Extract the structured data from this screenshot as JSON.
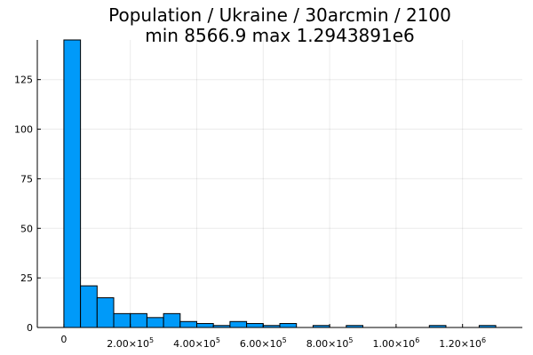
{
  "chart_data": {
    "type": "bar",
    "title": "Population / Ukraine / 30arcmin / 2100",
    "subtitle": "min 8566.9  max 1.2943891e6",
    "bar_color": "#009af9",
    "bin_width": 50000,
    "bins_start": 0,
    "counts": [
      145,
      21,
      15,
      7,
      7,
      5,
      7,
      3,
      2,
      1,
      3,
      2,
      1,
      2,
      0,
      1,
      0,
      1,
      0,
      0,
      0,
      0,
      1,
      0,
      0,
      1
    ],
    "xlim": [
      -80000,
      1380000
    ],
    "ylim": [
      0,
      145
    ],
    "x_ticks": [
      {
        "value": 0,
        "mantissa": "0",
        "exp": ""
      },
      {
        "value": 200000,
        "mantissa": "2.00×10",
        "exp": "5"
      },
      {
        "value": 400000,
        "mantissa": "4.00×10",
        "exp": "5"
      },
      {
        "value": 600000,
        "mantissa": "6.00×10",
        "exp": "5"
      },
      {
        "value": 800000,
        "mantissa": "8.00×10",
        "exp": "5"
      },
      {
        "value": 1000000,
        "mantissa": "1.00×10",
        "exp": "6"
      },
      {
        "value": 1200000,
        "mantissa": "1.20×10",
        "exp": "6"
      }
    ],
    "y_ticks": [
      0,
      25,
      50,
      75,
      100,
      125
    ],
    "xlabel": "",
    "ylabel": "",
    "grid": true,
    "legend": "none"
  }
}
